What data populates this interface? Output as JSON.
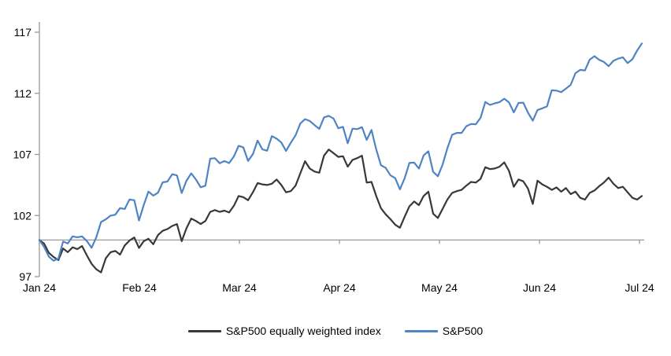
{
  "chart_data": {
    "type": "line",
    "title": "",
    "x_tick_labels": [
      "Jan 24",
      "Feb 24",
      "Mar 24",
      "Apr 24",
      "May 24",
      "Jun 24",
      "Jul 24"
    ],
    "y_tick_labels": [
      "97",
      "102",
      "107",
      "112",
      "117"
    ],
    "y_ticks": [
      97,
      102,
      107,
      112,
      117
    ],
    "ylim": [
      97,
      117
    ],
    "baseline_value": 100,
    "legend_position": "bottom",
    "axis_color": "#999999",
    "text_color": "#000000",
    "series": [
      {
        "name": "S&P500 equally weighted index",
        "color": "#383838",
        "values": [
          100,
          99.7,
          98.95,
          98.6,
          98.35,
          99.3,
          99.0,
          99.4,
          99.25,
          99.5,
          98.75,
          98.05,
          97.6,
          97.35,
          98.5,
          99.0,
          99.1,
          98.8,
          99.55,
          99.95,
          100.2,
          99.35,
          99.9,
          100.1,
          99.65,
          100.4,
          100.75,
          100.9,
          101.15,
          101.3,
          99.9,
          100.95,
          101.75,
          101.55,
          101.3,
          101.55,
          102.3,
          102.45,
          102.3,
          102.4,
          102.25,
          102.8,
          103.6,
          103.5,
          103.25,
          103.9,
          104.65,
          104.55,
          104.5,
          104.6,
          104.95,
          104.5,
          103.9,
          104.0,
          104.45,
          105.45,
          106.45,
          105.85,
          105.6,
          105.5,
          106.9,
          107.4,
          107.1,
          106.8,
          106.85,
          106.0,
          106.55,
          106.7,
          106.9,
          104.7,
          104.75,
          103.6,
          102.6,
          102.1,
          101.7,
          101.25,
          101.0,
          101.9,
          102.75,
          103.15,
          102.85,
          103.6,
          103.95,
          102.15,
          101.8,
          102.55,
          103.3,
          103.85,
          104.0,
          104.1,
          104.45,
          104.75,
          104.7,
          105.0,
          105.95,
          105.8,
          105.85,
          106.0,
          106.35,
          105.65,
          104.35,
          104.95,
          104.8,
          104.2,
          102.95,
          104.85,
          104.55,
          104.35,
          104.1,
          104.3,
          103.95,
          104.25,
          103.75,
          103.95,
          103.45,
          103.3,
          103.85,
          104.05,
          104.4,
          104.7,
          105.1,
          104.6,
          104.25,
          104.35,
          103.9,
          103.45,
          103.3,
          103.6
        ]
      },
      {
        "name": "S&P500",
        "color": "#4e84c4",
        "values": [
          100,
          99.43,
          98.64,
          98.3,
          98.48,
          99.87,
          99.72,
          100.29,
          100.22,
          100.29,
          99.92,
          99.36,
          100.23,
          101.47,
          101.69,
          101.99,
          102.07,
          102.61,
          102.54,
          103.31,
          103.25,
          101.59,
          102.86,
          103.96,
          103.63,
          103.87,
          104.72,
          104.78,
          105.38,
          105.28,
          103.84,
          104.84,
          105.45,
          104.94,
          104.31,
          104.44,
          106.65,
          106.69,
          106.28,
          106.46,
          106.29,
          106.84,
          107.7,
          107.57,
          106.47,
          107.02,
          108.13,
          107.42,
          107.3,
          108.5,
          108.29,
          107.98,
          107.28,
          107.96,
          108.57,
          109.53,
          109.89,
          109.74,
          109.4,
          109.09,
          110.03,
          110.16,
          109.94,
          109.14,
          109.26,
          107.91,
          109.11,
          109.07,
          109.23,
          108.19,
          109.0,
          107.41,
          106.12,
          105.9,
          105.29,
          105.06,
          104.14,
          105.05,
          106.3,
          106.33,
          105.84,
          106.92,
          107.26,
          105.57,
          105.21,
          106.17,
          107.5,
          108.61,
          108.76,
          108.76,
          109.31,
          109.49,
          109.47,
          110.0,
          111.29,
          111.05,
          111.18,
          111.28,
          111.56,
          111.26,
          110.44,
          111.21,
          111.24,
          110.42,
          109.76,
          110.64,
          110.77,
          110.93,
          112.25,
          112.22,
          112.1,
          112.39,
          112.69,
          113.65,
          113.92,
          113.87,
          114.75,
          115.04,
          114.74,
          114.57,
          114.22,
          114.66,
          114.84,
          114.95,
          114.48,
          114.79,
          115.5,
          116.08
        ]
      }
    ]
  }
}
